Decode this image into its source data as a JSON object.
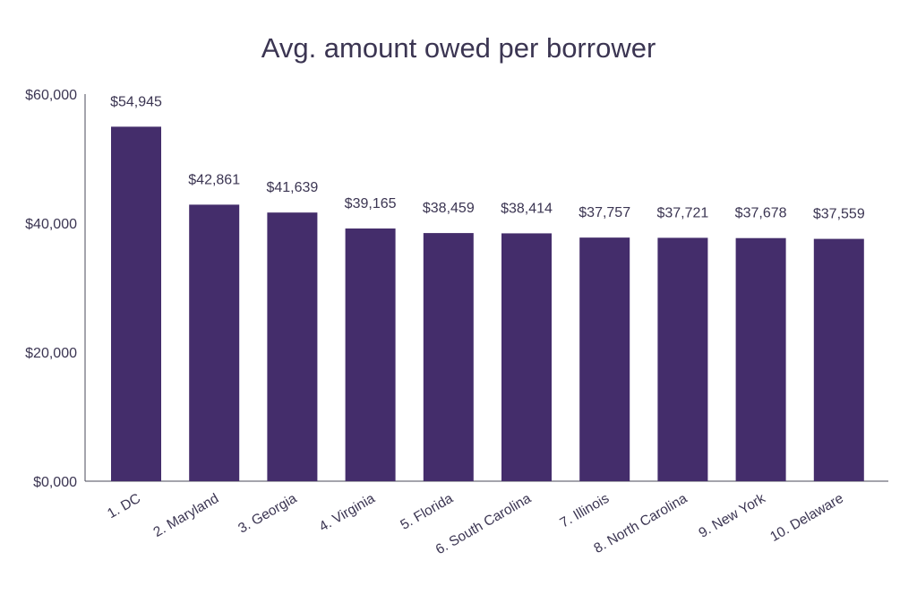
{
  "chart_data": {
    "type": "bar",
    "title": "Avg. amount owed per borrower",
    "xlabel": "",
    "ylabel": "",
    "categories": [
      "1. DC",
      "2. Maryland",
      "3. Georgia",
      "4. Virginia",
      "5. Florida",
      "6. South Carolina",
      "7. Illinois",
      "8. North Carolina",
      "9. New York",
      "10. Delaware"
    ],
    "values": [
      54945,
      42861,
      41639,
      39165,
      38459,
      38414,
      37757,
      37721,
      37678,
      37559
    ],
    "data_labels": [
      "$54,945",
      "$42,861",
      "$41,639",
      "$39,165",
      "$38,459",
      "$38,414",
      "$37,757",
      "$37,721",
      "$37,678",
      "$37,559"
    ],
    "ylim": [
      0,
      60000
    ],
    "yticks": [
      0,
      20000,
      40000,
      60000
    ],
    "ytick_labels": [
      "$0,000",
      "$20,000",
      "$40,000",
      "$60,000"
    ],
    "grid": false,
    "legend": "none",
    "colors": {
      "bar": "#442d6b",
      "text": "#3b3552",
      "axis": "#4a4a5a"
    }
  }
}
